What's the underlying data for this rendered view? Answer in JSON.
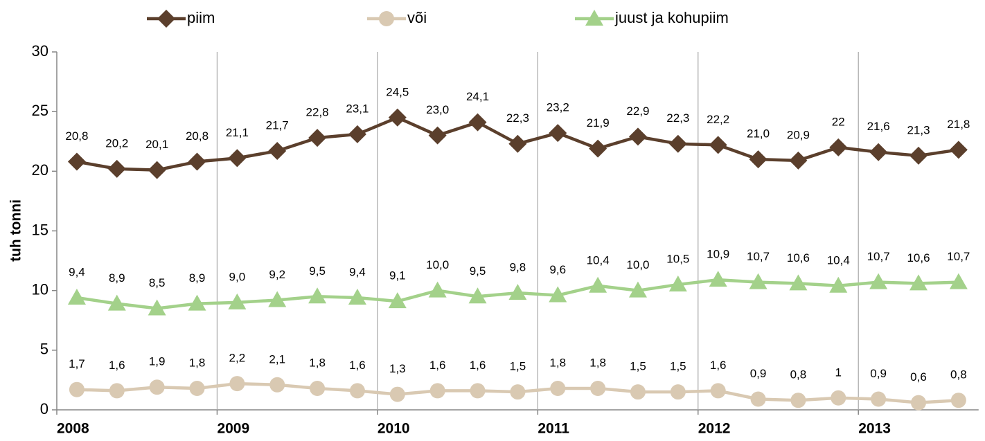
{
  "chart_data": {
    "type": "line",
    "y_label": "tuh tonni",
    "categories": [
      "2008",
      null,
      null,
      null,
      "2009",
      null,
      null,
      null,
      "2010",
      null,
      null,
      null,
      "2011",
      null,
      null,
      null,
      "2012",
      null,
      null,
      null,
      "2013",
      null,
      null
    ],
    "series": [
      {
        "name": "piim",
        "color": "#5b3f2c",
        "marker": "diamond",
        "values": [
          20.8,
          20.2,
          20.1,
          20.8,
          21.1,
          21.7,
          22.8,
          23.1,
          24.5,
          23.0,
          24.1,
          22.3,
          23.2,
          21.9,
          22.9,
          22.3,
          22.2,
          21.0,
          20.9,
          22,
          21.6,
          21.3,
          21.8
        ],
        "value_labels": [
          "20,8",
          "20,2",
          "20,1",
          "20,8",
          "21,1",
          "21,7",
          "22,8",
          "23,1",
          "24,5",
          "23,0",
          "24,1",
          "22,3",
          "23,2",
          "21,9",
          "22,9",
          "22,3",
          "22,2",
          "21,0",
          "20,9",
          "22",
          "21,6",
          "21,3",
          "21,8"
        ]
      },
      {
        "name": "või",
        "color": "#d9c9b2",
        "marker": "circle",
        "values": [
          1.7,
          1.6,
          1.9,
          1.8,
          2.2,
          2.1,
          1.8,
          1.6,
          1.3,
          1.6,
          1.6,
          1.5,
          1.8,
          1.8,
          1.5,
          1.5,
          1.6,
          0.9,
          0.8,
          1,
          0.9,
          0.6,
          0.8
        ],
        "value_labels": [
          "1,7",
          "1,6",
          "1,9",
          "1,8",
          "2,2",
          "2,1",
          "1,8",
          "1,6",
          "1,3",
          "1,6",
          "1,6",
          "1,5",
          "1,8",
          "1,8",
          "1,5",
          "1,5",
          "1,6",
          "0,9",
          "0,8",
          "1",
          "0,9",
          "0,6",
          "0,8"
        ]
      },
      {
        "name": "juust ja kohupiim",
        "color": "#a3d18a",
        "marker": "triangle",
        "values": [
          9.4,
          8.9,
          8.5,
          8.9,
          9.0,
          9.2,
          9.5,
          9.4,
          9.1,
          10.0,
          9.5,
          9.8,
          9.6,
          10.4,
          10.0,
          10.5,
          10.9,
          10.7,
          10.6,
          10.4,
          10.7,
          10.6,
          10.7
        ],
        "value_labels": [
          "9,4",
          "8,9",
          "8,5",
          "8,9",
          "9,0",
          "9,2",
          "9,5",
          "9,4",
          "9,1",
          "10,0",
          "9,5",
          "9,8",
          "9,6",
          "10,4",
          "10,0",
          "10,5",
          "10,9",
          "10,7",
          "10,6",
          "10,4",
          "10,7",
          "10,6",
          "10,7"
        ]
      }
    ],
    "ylim": [
      0,
      30
    ],
    "yticks": [
      0,
      5,
      10,
      15,
      20,
      25,
      30
    ],
    "legend": "top"
  }
}
